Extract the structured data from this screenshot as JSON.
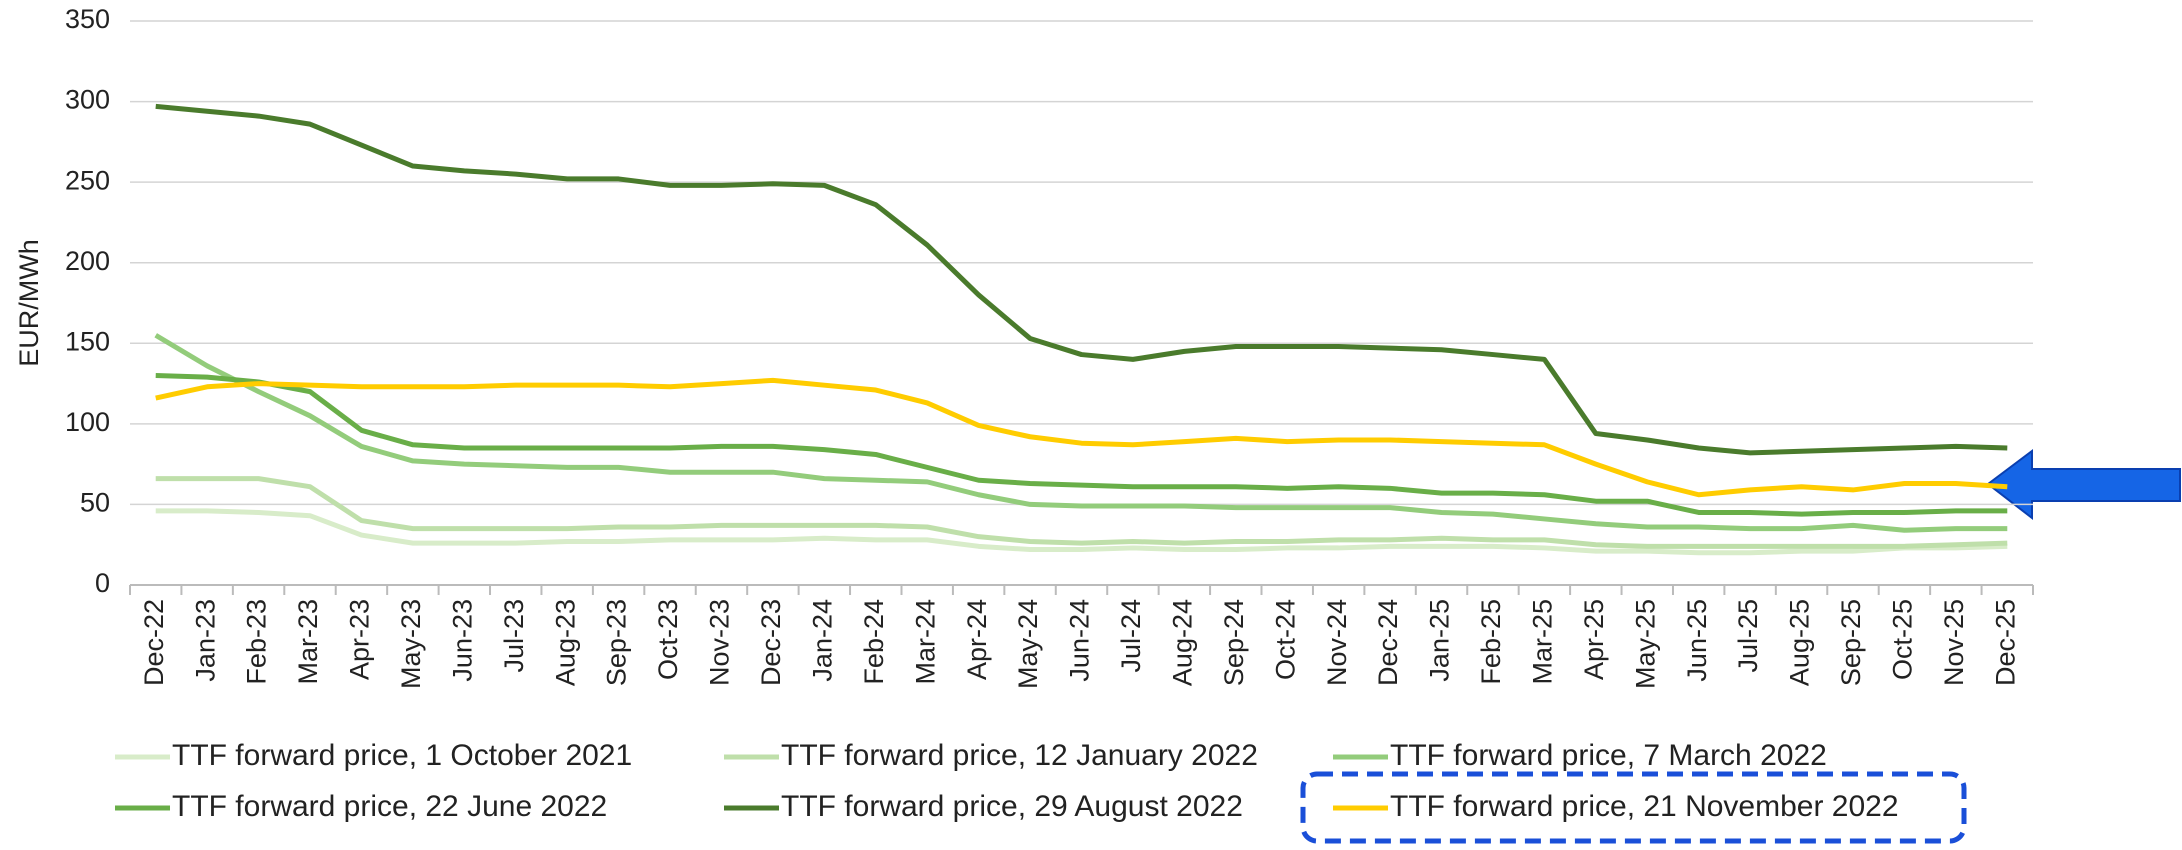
{
  "chart_data": {
    "type": "line",
    "ylabel": "EUR/MWh",
    "categories": [
      "Dec-22",
      "Jan-23",
      "Feb-23",
      "Mar-23",
      "Apr-23",
      "May-23",
      "Jun-23",
      "Jul-23",
      "Aug-23",
      "Sep-23",
      "Oct-23",
      "Nov-23",
      "Dec-23",
      "Jan-24",
      "Feb-24",
      "Mar-24",
      "Apr-24",
      "May-24",
      "Jun-24",
      "Jul-24",
      "Aug-24",
      "Sep-24",
      "Oct-24",
      "Nov-24",
      "Dec-24",
      "Jan-25",
      "Feb-25",
      "Mar-25",
      "Apr-25",
      "May-25",
      "Jun-25",
      "Jul-25",
      "Aug-25",
      "Sep-25",
      "Oct-25",
      "Nov-25",
      "Dec-25"
    ],
    "ylim": [
      0,
      350
    ],
    "yticks": [
      0,
      50,
      100,
      150,
      200,
      250,
      300,
      350
    ],
    "grid": true,
    "series": [
      {
        "name": "TTF forward price, 1 October 2021",
        "color": "#d8ecc9",
        "values": [
          46,
          46,
          45,
          43,
          31,
          26,
          26,
          26,
          27,
          27,
          28,
          28,
          28,
          29,
          28,
          28,
          24,
          22,
          22,
          23,
          22,
          22,
          23,
          23,
          24,
          24,
          24,
          23,
          21,
          21,
          20,
          20,
          21,
          21,
          23,
          23,
          24
        ]
      },
      {
        "name": "TTF forward price, 12 January 2022",
        "color": "#bfdfaa",
        "values": [
          66,
          66,
          66,
          61,
          40,
          35,
          35,
          35,
          35,
          36,
          36,
          37,
          37,
          37,
          37,
          36,
          30,
          27,
          26,
          27,
          26,
          27,
          27,
          28,
          28,
          29,
          28,
          28,
          25,
          24,
          24,
          24,
          24,
          24,
          24,
          25,
          26
        ]
      },
      {
        "name": "TTF forward price, 7 March 2022",
        "color": "#93cc7b",
        "values": [
          155,
          136,
          120,
          105,
          86,
          77,
          75,
          74,
          73,
          73,
          70,
          70,
          70,
          66,
          65,
          64,
          56,
          50,
          49,
          49,
          49,
          48,
          48,
          48,
          48,
          45,
          44,
          41,
          38,
          36,
          36,
          35,
          35,
          37,
          34,
          35,
          35
        ]
      },
      {
        "name": "TTF forward price, 22 June 2022",
        "color": "#69ae48",
        "values": [
          130,
          129,
          126,
          120,
          96,
          87,
          85,
          85,
          85,
          85,
          85,
          86,
          86,
          84,
          81,
          73,
          65,
          63,
          62,
          61,
          61,
          61,
          60,
          61,
          60,
          57,
          57,
          56,
          52,
          52,
          45,
          45,
          44,
          45,
          45,
          46,
          46
        ]
      },
      {
        "name": "TTF forward price, 29 August 2022",
        "color": "#4a7b2c",
        "values": [
          297,
          294,
          291,
          286,
          273,
          260,
          257,
          255,
          252,
          252,
          248,
          248,
          249,
          248,
          236,
          211,
          180,
          153,
          143,
          140,
          145,
          148,
          148,
          148,
          147,
          146,
          143,
          140,
          94,
          90,
          85,
          82,
          83,
          84,
          85,
          86,
          85
        ]
      },
      {
        "name": "TTF forward price, 21 November 2022",
        "color": "#ffcc00",
        "values": [
          116,
          123,
          125,
          124,
          123,
          123,
          123,
          124,
          124,
          124,
          123,
          125,
          127,
          124,
          121,
          113,
          99,
          92,
          88,
          87,
          89,
          91,
          89,
          90,
          90,
          89,
          88,
          87,
          75,
          64,
          56,
          59,
          61,
          59,
          63,
          63,
          61
        ]
      }
    ]
  }
}
